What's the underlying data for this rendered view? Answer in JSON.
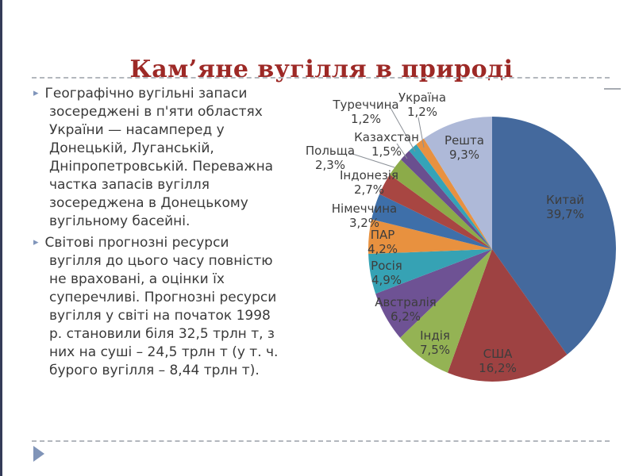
{
  "slide": {
    "title": "Кам’яне вугілля в природі",
    "bullets": [
      [
        "Географічно вугільні запаси",
        "зосереджені в п'яти областях",
        "України — насамперед у",
        "Донецькій, Луганській,",
        "Дніпропетровській. Переважна",
        "частка запасів вугілля",
        "зосереджена в Донецькому",
        "вугільному басейні."
      ],
      [
        "Світові прогнозні ресурси",
        "вугілля до цього часу повністю",
        "не враховані, а оцінки їх",
        "суперечливі. Прогнозні ресурси",
        "вугілля у світі на початок 1998",
        "р. становили біля 32,5 трлн т, з",
        "них на суші – 24,5 трлн т (у т. ч.",
        "бурого вугілля – 8,44 трлн т)."
      ]
    ]
  },
  "chart_data": {
    "type": "pie",
    "title": "",
    "legend": "none",
    "value_unit": "%",
    "start_angle": "12 o'clock",
    "direction": "clockwise",
    "slices": [
      {
        "label": "Китай",
        "value": 39.7,
        "display": "39,7%",
        "color": "#44699d"
      },
      {
        "label": "США",
        "value": 16.2,
        "display": "16,2%",
        "color": "#9e4242"
      },
      {
        "label": "Індія",
        "value": 7.5,
        "display": "7,5%",
        "color": "#94b354"
      },
      {
        "label": "Австралія",
        "value": 6.2,
        "display": "6,2%",
        "color": "#6e5294"
      },
      {
        "label": "Росія",
        "value": 4.9,
        "display": "4,9%",
        "color": "#36a2b4"
      },
      {
        "label": "ПАР",
        "value": 4.2,
        "display": "4,2%",
        "color": "#e8913f"
      },
      {
        "label": "Німеччина",
        "value": 3.2,
        "display": "3,2%",
        "color": "#3e6fa9"
      },
      {
        "label": "Індонезія",
        "value": 2.7,
        "display": "2,7%",
        "color": "#a84642"
      },
      {
        "label": "Польща",
        "value": 2.3,
        "display": "2,3%",
        "color": "#8cab49"
      },
      {
        "label": "Казахстан",
        "value": 1.5,
        "display": "1,5%",
        "color": "#6a4f8f"
      },
      {
        "label": "Туреччина",
        "value": 1.2,
        "display": "1,2%",
        "color": "#35a3b8"
      },
      {
        "label": "Україна",
        "value": 1.2,
        "display": "1,2%",
        "color": "#e89140"
      },
      {
        "label": "Решта",
        "value": 9.3,
        "display": "9,3%",
        "color": "#aeb9d8"
      }
    ]
  },
  "theme": {
    "title_color": "#9d2926",
    "text_color": "#3a3a3a",
    "bullet_marker": "▸",
    "bullet_marker_color": "#8095bb",
    "accent_bar_color": "#343b58",
    "divider_color": "#b3b7bd"
  }
}
